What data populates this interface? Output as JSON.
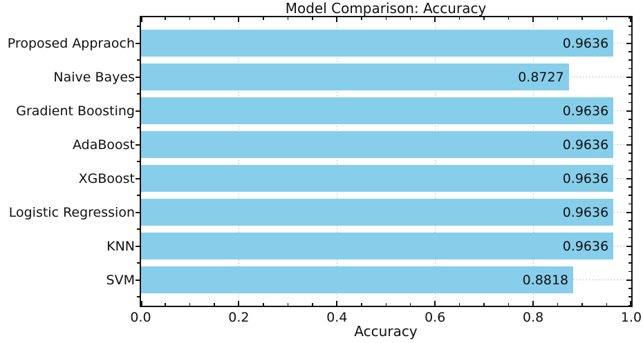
{
  "chart_data": {
    "type": "bar",
    "orientation": "horizontal",
    "title": "Model Comparison: Accuracy",
    "xlabel": "Accuracy",
    "ylabel": "",
    "categories": [
      "Proposed Appraoch",
      "Naive Bayes",
      "Gradient Boosting",
      "AdaBoost",
      "XGBoost",
      "Logistic Regression",
      "KNN",
      "SVM"
    ],
    "values": [
      0.9636,
      0.8727,
      0.9636,
      0.9636,
      0.9636,
      0.9636,
      0.9636,
      0.8818
    ],
    "value_labels": [
      "0.9636",
      "0.8727",
      "0.9636",
      "0.9636",
      "0.9636",
      "0.9636",
      "0.9636",
      "0.8818"
    ],
    "xlim": [
      0.0,
      1.0
    ],
    "x_tick_values": [
      0.0,
      0.2,
      0.4,
      0.6,
      0.8,
      1.0
    ],
    "x_tick_labels": [
      "0.0",
      "0.2",
      "0.4",
      "0.6",
      "0.8",
      "1.0"
    ],
    "x_minor_tick_step": 0.05,
    "grid": "dotted",
    "grid_color": "#b3b3b3",
    "bar_color": "#87CEEB",
    "legend": "none"
  }
}
